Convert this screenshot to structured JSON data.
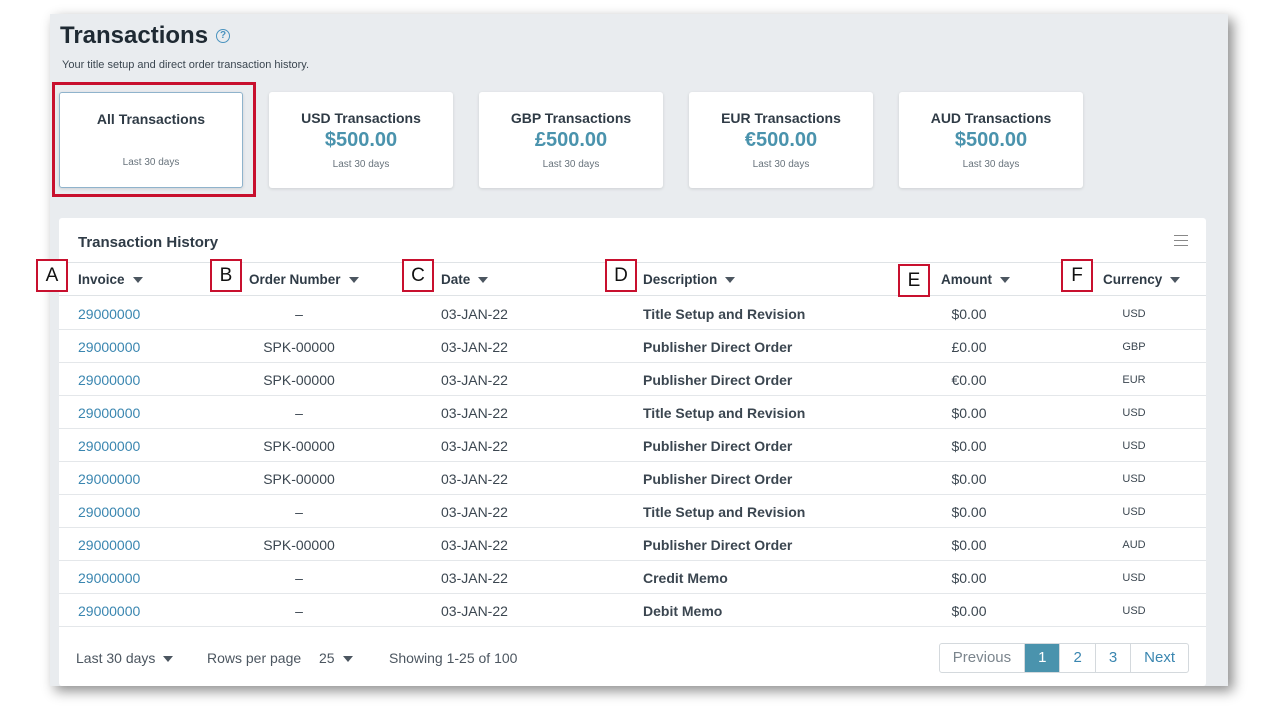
{
  "page": {
    "title": "Transactions",
    "subtitle": "Your title setup and direct order transaction history."
  },
  "cards": [
    {
      "title": "All Transactions",
      "amount": "",
      "period": "Last 30 days"
    },
    {
      "title": "USD Transactions",
      "amount": "$500.00",
      "period": "Last 30 days"
    },
    {
      "title": "GBP Transactions",
      "amount": "£500.00",
      "period": "Last 30 days"
    },
    {
      "title": "EUR Transactions",
      "amount": "€500.00",
      "period": "Last 30 days"
    },
    {
      "title": "AUD Transactions",
      "amount": "$500.00",
      "period": "Last 30 days"
    }
  ],
  "history": {
    "title": "Transaction History",
    "columns": [
      "Invoice",
      "Order Number",
      "Date",
      "Description",
      "Amount",
      "Currency"
    ],
    "rows": [
      {
        "invoice": "29000000",
        "order": "–",
        "date": "03-JAN-22",
        "description": "Title Setup and Revision",
        "amount": "$0.00",
        "currency": "USD"
      },
      {
        "invoice": "29000000",
        "order": "SPK-00000",
        "date": "03-JAN-22",
        "description": "Publisher Direct Order",
        "amount": "£0.00",
        "currency": "GBP"
      },
      {
        "invoice": "29000000",
        "order": "SPK-00000",
        "date": "03-JAN-22",
        "description": "Publisher Direct Order",
        "amount": "€0.00",
        "currency": "EUR"
      },
      {
        "invoice": "29000000",
        "order": "–",
        "date": "03-JAN-22",
        "description": "Title Setup and Revision",
        "amount": "$0.00",
        "currency": "USD"
      },
      {
        "invoice": "29000000",
        "order": "SPK-00000",
        "date": "03-JAN-22",
        "description": "Publisher Direct Order",
        "amount": "$0.00",
        "currency": "USD"
      },
      {
        "invoice": "29000000",
        "order": "SPK-00000",
        "date": "03-JAN-22",
        "description": "Publisher Direct Order",
        "amount": "$0.00",
        "currency": "USD"
      },
      {
        "invoice": "29000000",
        "order": "–",
        "date": "03-JAN-22",
        "description": "Title Setup and Revision",
        "amount": "$0.00",
        "currency": "USD"
      },
      {
        "invoice": "29000000",
        "order": "SPK-00000",
        "date": "03-JAN-22",
        "description": "Publisher Direct Order",
        "amount": "$0.00",
        "currency": "AUD"
      },
      {
        "invoice": "29000000",
        "order": "–",
        "date": "03-JAN-22",
        "description": "Credit Memo",
        "amount": "$0.00",
        "currency": "USD"
      },
      {
        "invoice": "29000000",
        "order": "–",
        "date": "03-JAN-22",
        "description": "Debit Memo",
        "amount": "$0.00",
        "currency": "USD"
      }
    ]
  },
  "footer": {
    "period": "Last 30 days",
    "rows_label": "Rows per page",
    "rows_value": "25",
    "showing": "Showing 1-25 of 100",
    "pager": {
      "previous": "Previous",
      "pages": [
        "1",
        "2",
        "3"
      ],
      "next": "Next",
      "active_page": "1"
    }
  },
  "markers": [
    "A",
    "B",
    "C",
    "D",
    "E",
    "F"
  ],
  "colors": {
    "accent": "#4a93ad",
    "highlight": "#c8102e"
  }
}
